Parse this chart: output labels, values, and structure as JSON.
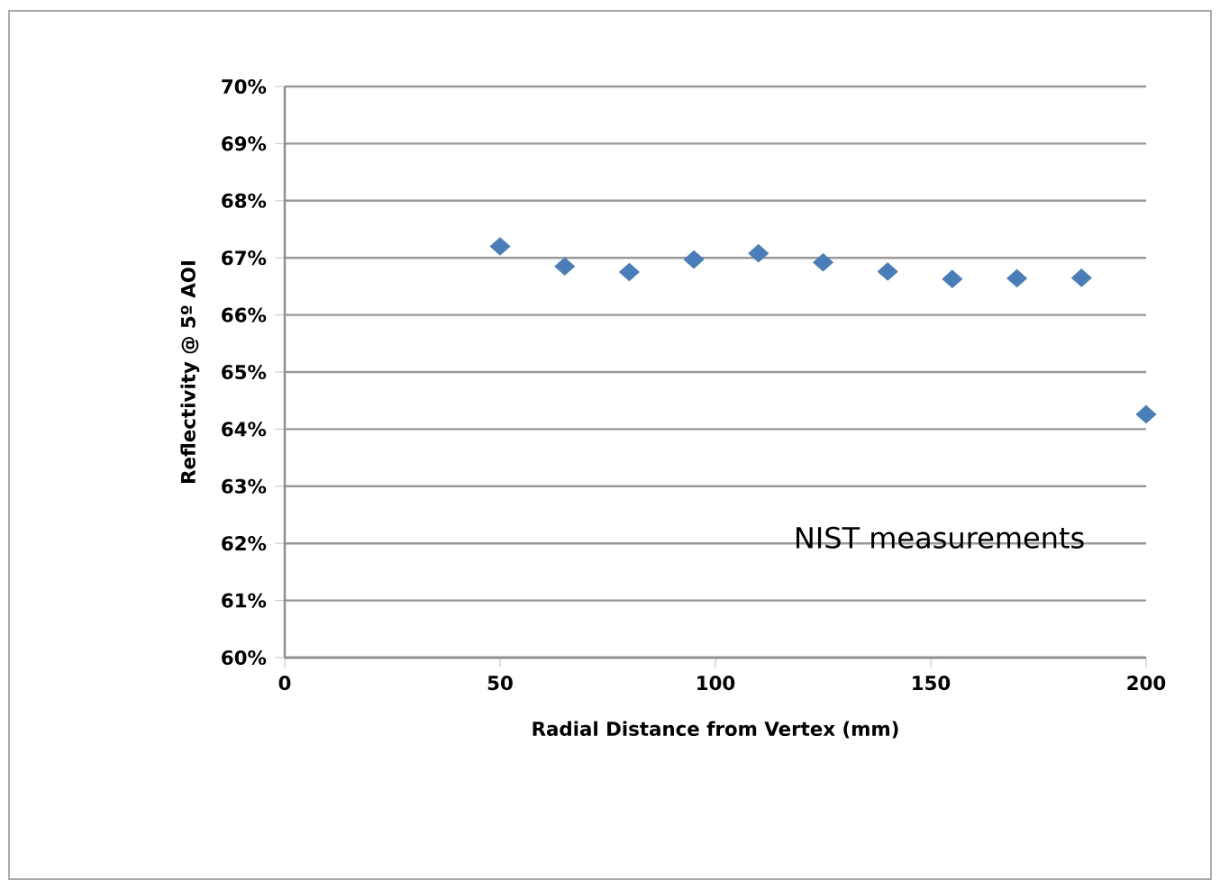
{
  "chart_data": {
    "type": "scatter",
    "xlabel": "Radial Distance from Vertex (mm)",
    "ylabel": "Reflectivity @ 5º AOI",
    "x": [
      50,
      65,
      80,
      95,
      110,
      125,
      140,
      155,
      170,
      185,
      200
    ],
    "values": [
      67.2,
      66.85,
      66.75,
      66.97,
      67.08,
      66.92,
      66.76,
      66.63,
      66.64,
      66.65,
      64.26
    ],
    "color": "#4a7ebb",
    "marker": "diamond",
    "grid": "y",
    "xlim": [
      0,
      200
    ],
    "xticks": [
      0,
      50,
      100,
      150,
      200
    ],
    "ylim": [
      60,
      70
    ],
    "yticks": [
      {
        "value": 60,
        "label": "60%"
      },
      {
        "value": 61,
        "label": "61%"
      },
      {
        "value": 62,
        "label": "62%"
      },
      {
        "value": 63,
        "label": "63%"
      },
      {
        "value": 64,
        "label": "64%"
      },
      {
        "value": 65,
        "label": "65%"
      },
      {
        "value": 66,
        "label": "66%"
      },
      {
        "value": 67,
        "label": "67%"
      },
      {
        "value": 68,
        "label": "68%"
      },
      {
        "value": 69,
        "label": "69%"
      },
      {
        "value": 70,
        "label": "70%"
      }
    ],
    "annotations": [
      "NIST measurements"
    ]
  }
}
